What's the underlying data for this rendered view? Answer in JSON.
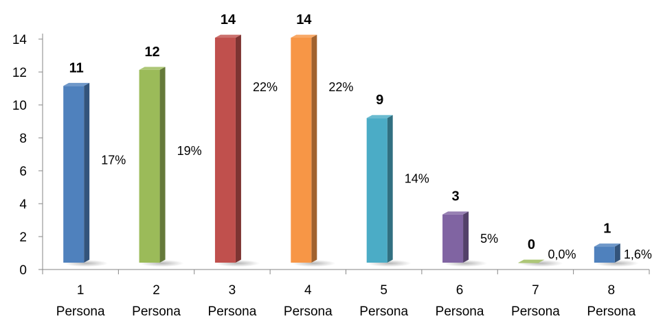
{
  "chart_data": {
    "type": "bar",
    "title": "",
    "xlabel": "",
    "ylabel": "",
    "ylim": [
      0,
      14
    ],
    "yticks": [
      0,
      2,
      4,
      6,
      8,
      10,
      12,
      14
    ],
    "categories": [
      [
        "1",
        "Persona"
      ],
      [
        "2",
        "Persona"
      ],
      [
        "3",
        "Persona"
      ],
      [
        "4",
        "Persona"
      ],
      [
        "5",
        "Persona"
      ],
      [
        "6",
        "Persona"
      ],
      [
        "7",
        "Persona"
      ],
      [
        "8",
        "Persona"
      ]
    ],
    "values": [
      11,
      12,
      14,
      14,
      9,
      3,
      0,
      1
    ],
    "value_labels": [
      "11",
      "12",
      "14",
      "14",
      "9",
      "3",
      "0",
      "1"
    ],
    "percent_labels": [
      "17%",
      "19%",
      "22%",
      "22%",
      "14%",
      "5%",
      "0,0%",
      "1,6%"
    ],
    "colors": [
      "#4f81bd",
      "#9bbb59",
      "#c0504d",
      "#f79646",
      "#4bacc6",
      "#8064a2",
      "#9bbb59",
      "#4f81bd"
    ],
    "grid": false,
    "legend": "none",
    "style": "3d-column"
  }
}
